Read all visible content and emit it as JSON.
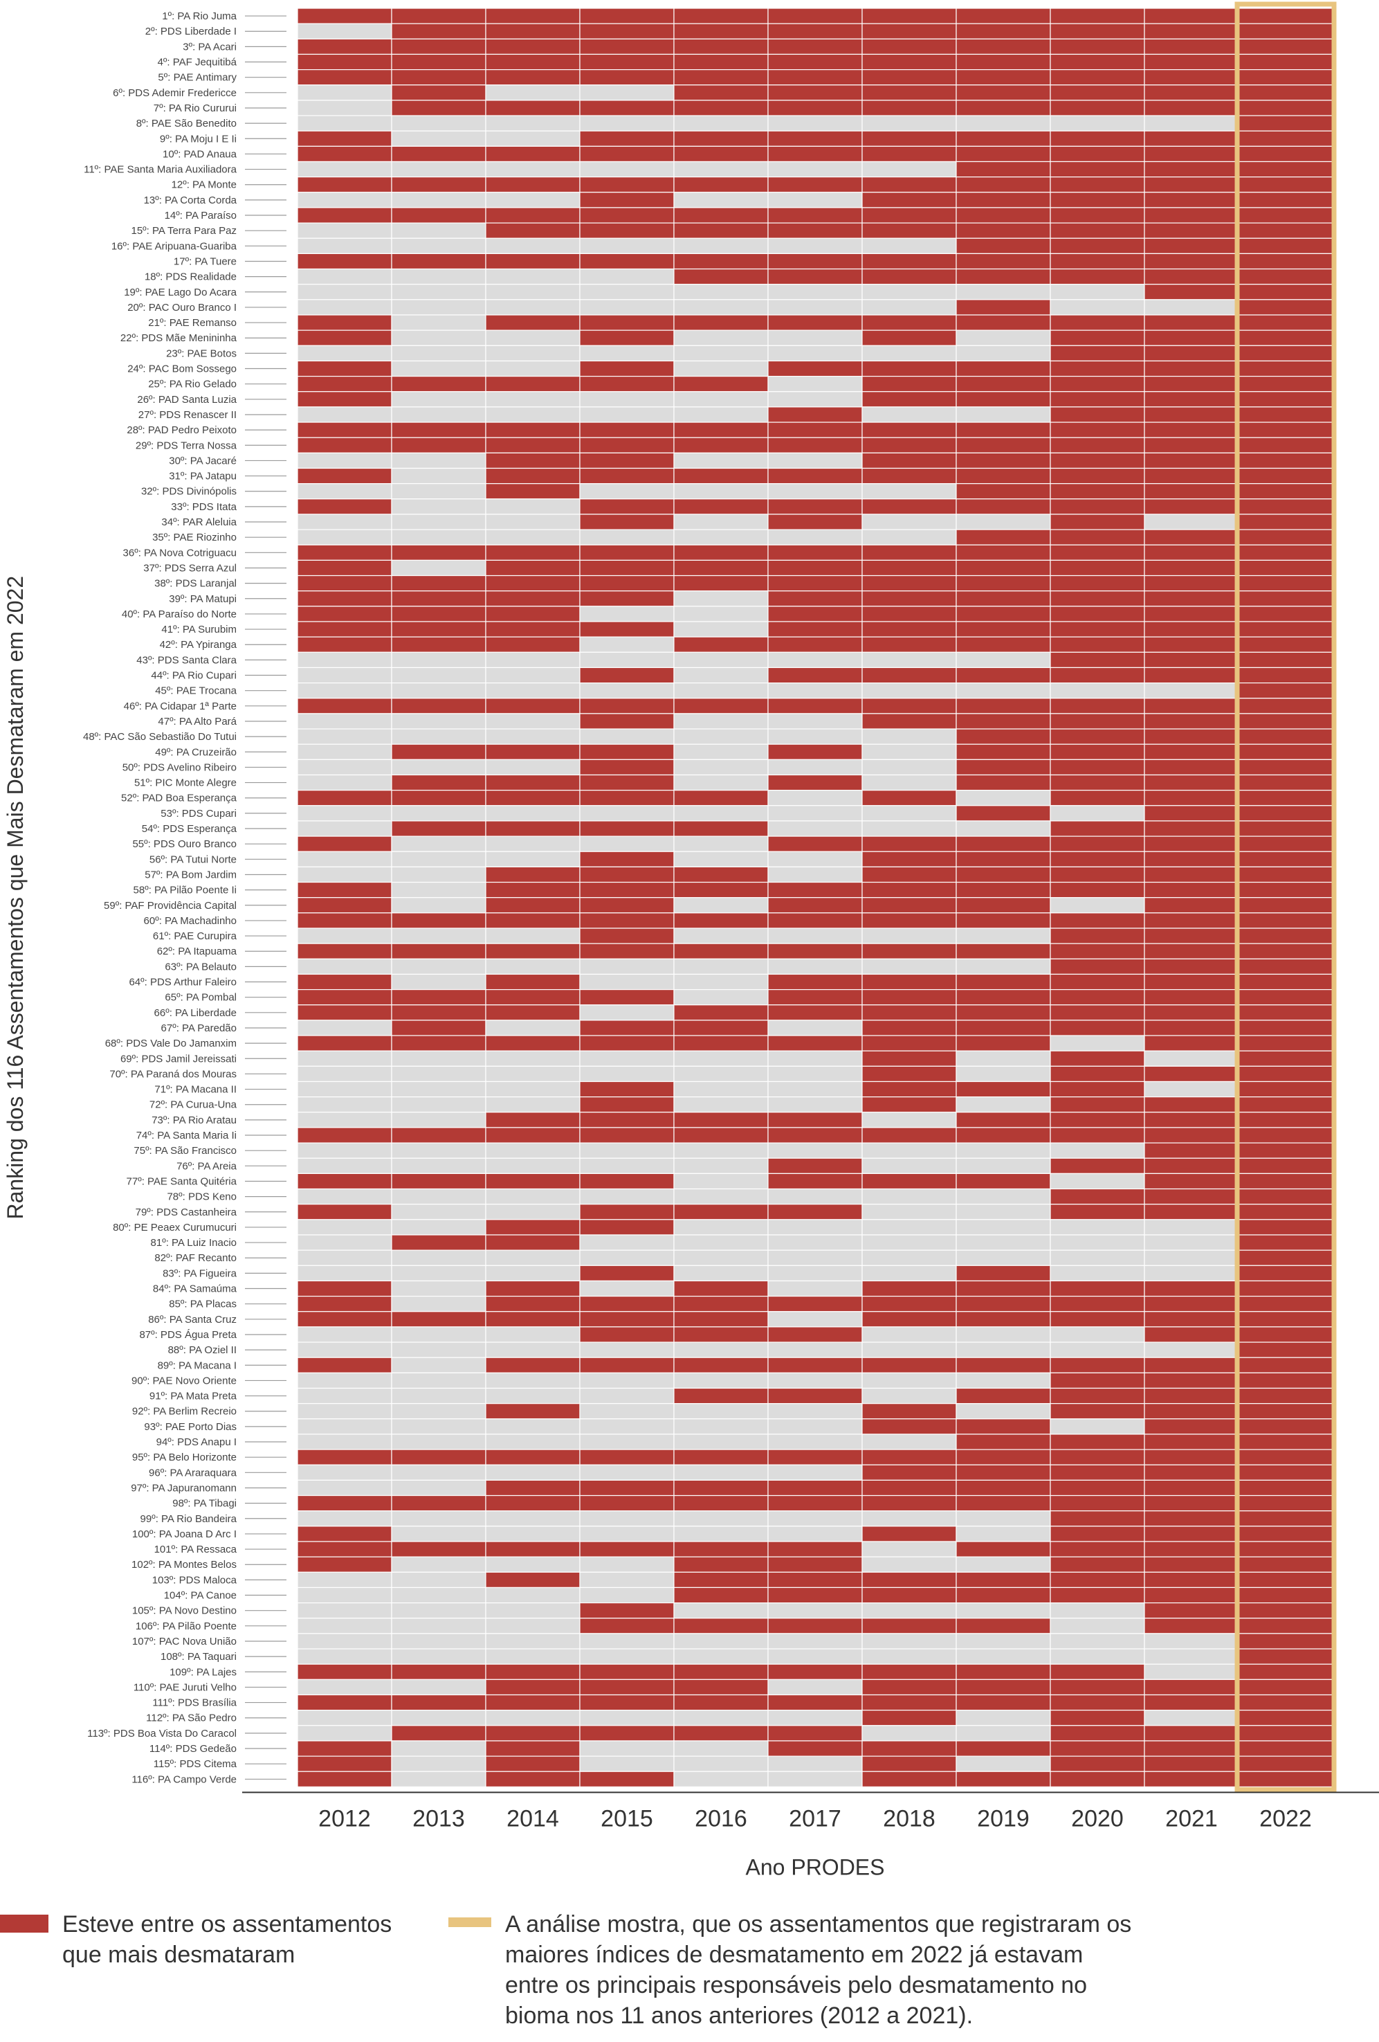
{
  "chart_data": {
    "type": "heatmap",
    "ylabel": "Ranking dos 116 Assentamentos que Mais Desmataram em 2022",
    "xlabel": "Ano PRODES",
    "years": [
      "2012",
      "2013",
      "2014",
      "2015",
      "2016",
      "2017",
      "2018",
      "2019",
      "2020",
      "2021",
      "2022"
    ],
    "highlight_year": "2022",
    "colors": {
      "on": "#b33a35",
      "off": "#dcdcdc",
      "highlight": "#e8c47f",
      "grid": "#ffffff",
      "axis": "#333333"
    },
    "rows": [
      {
        "label": "1º: PA Rio Juma",
        "bits": "11111111111"
      },
      {
        "label": "2º: PDS Liberdade I",
        "bits": "01111111111"
      },
      {
        "label": "3º: PA Acari",
        "bits": "11111111111"
      },
      {
        "label": "4º: PAF Jequitibá",
        "bits": "11111111111"
      },
      {
        "label": "5º: PAE Antimary",
        "bits": "11111111111"
      },
      {
        "label": "6º: PDS Ademir Fredericce",
        "bits": "01001111111"
      },
      {
        "label": "7º: PA Rio Cururui",
        "bits": "01111111111"
      },
      {
        "label": "8º: PAE São Benedito",
        "bits": "00000000001"
      },
      {
        "label": "9º: PA Moju I E Ii",
        "bits": "10011111111"
      },
      {
        "label": "10º: PAD Anaua",
        "bits": "11111111111"
      },
      {
        "label": "11º: PAE Santa Maria Auxiliadora",
        "bits": "00000001111"
      },
      {
        "label": "12º: PA Monte",
        "bits": "11111111111"
      },
      {
        "label": "13º: PA Corta Corda",
        "bits": "00010011111"
      },
      {
        "label": "14º: PA Paraíso",
        "bits": "11111111111"
      },
      {
        "label": "15º: PA Terra Para Paz",
        "bits": "00111111111"
      },
      {
        "label": "16º: PAE Aripuana-Guariba",
        "bits": "00000001111"
      },
      {
        "label": "17º: PA Tuere",
        "bits": "11111111111"
      },
      {
        "label": "18º: PDS Realidade",
        "bits": "00001111111"
      },
      {
        "label": "19º: PAE Lago Do Acara",
        "bits": "00000000011"
      },
      {
        "label": "20º: PAC Ouro Branco I",
        "bits": "00000001001"
      },
      {
        "label": "21º: PAE Remanso",
        "bits": "10111111111"
      },
      {
        "label": "22º: PDS Mãe Menininha",
        "bits": "10010010111"
      },
      {
        "label": "23º: PAE Botos",
        "bits": "00000000111"
      },
      {
        "label": "24º: PAC Bom Sossego",
        "bits": "10010111111"
      },
      {
        "label": "25º: PA Rio Gelado",
        "bits": "11111011111"
      },
      {
        "label": "26º: PAD Santa Luzia",
        "bits": "10000011111"
      },
      {
        "label": "27º: PDS Renascer II",
        "bits": "00000100111"
      },
      {
        "label": "28º: PAD Pedro Peixoto",
        "bits": "11111111111"
      },
      {
        "label": "29º: PDS Terra Nossa",
        "bits": "11111111111"
      },
      {
        "label": "30º: PA Jacaré",
        "bits": "00110011111"
      },
      {
        "label": "31º: PA Jatapu",
        "bits": "10111111111"
      },
      {
        "label": "32º: PDS Divinópolis",
        "bits": "00100001111"
      },
      {
        "label": "33º: PDS Itata",
        "bits": "10011111111"
      },
      {
        "label": "34º: PAR Aleluia",
        "bits": "00010100101"
      },
      {
        "label": "35º: PAE Riozinho",
        "bits": "00000001111"
      },
      {
        "label": "36º: PA Nova Cotriguacu",
        "bits": "11111111111"
      },
      {
        "label": "37º: PDS Serra Azul",
        "bits": "10111111111"
      },
      {
        "label": "38º: PDS Laranjal",
        "bits": "11111111111"
      },
      {
        "label": "39º: PA Matupi",
        "bits": "11110111111"
      },
      {
        "label": "40º: PA Paraíso do Norte",
        "bits": "11100111111"
      },
      {
        "label": "41º: PA Surubim",
        "bits": "11110111111"
      },
      {
        "label": "42º: PA Ypiranga",
        "bits": "11101111111"
      },
      {
        "label": "43º: PDS Santa Clara",
        "bits": "00000000111"
      },
      {
        "label": "44º: PA Rio Cupari",
        "bits": "00010111111"
      },
      {
        "label": "45º: PAE Trocana",
        "bits": "00000000001"
      },
      {
        "label": "46º: PA Cidapar 1ª Parte",
        "bits": "11111111111"
      },
      {
        "label": "47º: PA Alto Pará",
        "bits": "00010011111"
      },
      {
        "label": "48º: PAC São Sebastião Do Tutui",
        "bits": "00000001111"
      },
      {
        "label": "49º: PA Cruzeirão",
        "bits": "01110101111"
      },
      {
        "label": "50º: PDS Avelino Ribeiro",
        "bits": "00010001111"
      },
      {
        "label": "51º: PIC Monte Alegre",
        "bits": "01110101111"
      },
      {
        "label": "52º: PAD Boa Esperança",
        "bits": "11111010111"
      },
      {
        "label": "53º: PDS Cupari",
        "bits": "00000001011"
      },
      {
        "label": "54º: PDS Esperança",
        "bits": "01111000111"
      },
      {
        "label": "55º: PDS Ouro Branco",
        "bits": "10000111111"
      },
      {
        "label": "56º: PA Tutui Norte",
        "bits": "00010011111"
      },
      {
        "label": "57º: PA Bom Jardim",
        "bits": "00111011111"
      },
      {
        "label": "58º: PA Pilão Poente Ii",
        "bits": "10111111111"
      },
      {
        "label": "59º: PAF Providência Capital",
        "bits": "10110111011"
      },
      {
        "label": "60º: PA Machadinho",
        "bits": "11111111111"
      },
      {
        "label": "61º: PAE Curupira",
        "bits": "00010000111"
      },
      {
        "label": "62º: PA Itapuama",
        "bits": "11111111111"
      },
      {
        "label": "63º: PA Belauto",
        "bits": "00000000111"
      },
      {
        "label": "64º: PDS Arthur Faleiro",
        "bits": "10100111111"
      },
      {
        "label": "65º: PA Pombal",
        "bits": "11110111111"
      },
      {
        "label": "66º: PA Liberdade",
        "bits": "11101111111"
      },
      {
        "label": "67º: PA Paredão",
        "bits": "01011011111"
      },
      {
        "label": "68º: PDS Vale Do Jamanxim",
        "bits": "11111111011"
      },
      {
        "label": "69º: PDS Jamil Jereissati",
        "bits": "00000010101"
      },
      {
        "label": "70º: PA Paraná dos Mouras",
        "bits": "00000010111"
      },
      {
        "label": "71º: PA Macana II",
        "bits": "00010011101"
      },
      {
        "label": "72º: PA Curua-Una",
        "bits": "00010010111"
      },
      {
        "label": "73º: PA Rio Aratau",
        "bits": "00111101111"
      },
      {
        "label": "74º: PA Santa Maria Ii",
        "bits": "11111111111"
      },
      {
        "label": "75º: PA São Francisco",
        "bits": "00000000011"
      },
      {
        "label": "76º: PA Areia",
        "bits": "00000100111"
      },
      {
        "label": "77º: PAE Santa Quitéria",
        "bits": "11110111011"
      },
      {
        "label": "78º: PDS Keno",
        "bits": "00000000111"
      },
      {
        "label": "79º: PDS Castanheira",
        "bits": "10011100111"
      },
      {
        "label": "80º: PE Peaex Curumucuri",
        "bits": "00110000001"
      },
      {
        "label": "81º: PA Luiz Inacio",
        "bits": "01100000001"
      },
      {
        "label": "82º: PAF Recanto",
        "bits": "00000000001"
      },
      {
        "label": "83º: PA Figueira",
        "bits": "00010001001"
      },
      {
        "label": "84º: PA Samaúma",
        "bits": "10101011111"
      },
      {
        "label": "85º: PA Placas",
        "bits": "10111111111"
      },
      {
        "label": "86º: PA Santa Cruz",
        "bits": "11111011111"
      },
      {
        "label": "87º: PDS Água Preta",
        "bits": "00011100011"
      },
      {
        "label": "88º: PA Oziel II",
        "bits": "00000000001"
      },
      {
        "label": "89º: PA Macana I",
        "bits": "10111111111"
      },
      {
        "label": "90º: PAE Novo Oriente",
        "bits": "00000000111"
      },
      {
        "label": "91º: PA Mata Preta",
        "bits": "00001101111"
      },
      {
        "label": "92º: PA Berlim Recreio",
        "bits": "00100010111"
      },
      {
        "label": "93º: PAE Porto Dias",
        "bits": "00000011011"
      },
      {
        "label": "94º: PDS Anapu I",
        "bits": "00000001111"
      },
      {
        "label": "95º: PA Belo Horizonte",
        "bits": "11111111111"
      },
      {
        "label": "96º: PA Araraquara",
        "bits": "00000011111"
      },
      {
        "label": "97º: PA Japuranomann",
        "bits": "00111111111"
      },
      {
        "label": "98º: PA Tibagi",
        "bits": "11111111111"
      },
      {
        "label": "99º: PA Rio Bandeira",
        "bits": "00000000111"
      },
      {
        "label": "100º: PA Joana D Arc I",
        "bits": "10000010111"
      },
      {
        "label": "101º: PA Ressaca",
        "bits": "11111101111"
      },
      {
        "label": "102º: PA Montes Belos",
        "bits": "10001100111"
      },
      {
        "label": "103º: PDS Maloca",
        "bits": "00101111111"
      },
      {
        "label": "104º: PA Canoe",
        "bits": "00001111111"
      },
      {
        "label": "105º: PA Novo Destino",
        "bits": "00010000011"
      },
      {
        "label": "106º: PA Pilão Poente",
        "bits": "00011111011"
      },
      {
        "label": "107º: PAC Nova União",
        "bits": "00000000001"
      },
      {
        "label": "108º: PA Taquari",
        "bits": "00000000001"
      },
      {
        "label": "109º: PA Lajes",
        "bits": "11111111101"
      },
      {
        "label": "110º: PAE Juruti Velho",
        "bits": "00111011111"
      },
      {
        "label": "111º: PDS Brasília",
        "bits": "11111111111"
      },
      {
        "label": "112º: PA São Pedro",
        "bits": "00000010101"
      },
      {
        "label": "113º: PDS Boa Vista Do Caracol",
        "bits": "01111100111"
      },
      {
        "label": "114º: PDS Gedeão",
        "bits": "10100111111"
      },
      {
        "label": "115º: PDS Citema",
        "bits": "10100010111"
      },
      {
        "label": "116º: PA Campo Verde",
        "bits": "10110011111"
      }
    ]
  },
  "legend": {
    "red_label": "Esteve entre os assentamentos\nque mais desmataram",
    "highlight_label": "A análise mostra, que os assentamentos que registraram os\nmaiores índices de desmatamento em 2022 já estavam\nentre os principais responsáveis pelo desmatamento no\nbioma nos 11 anos anteriores (2012 a 2021)."
  }
}
